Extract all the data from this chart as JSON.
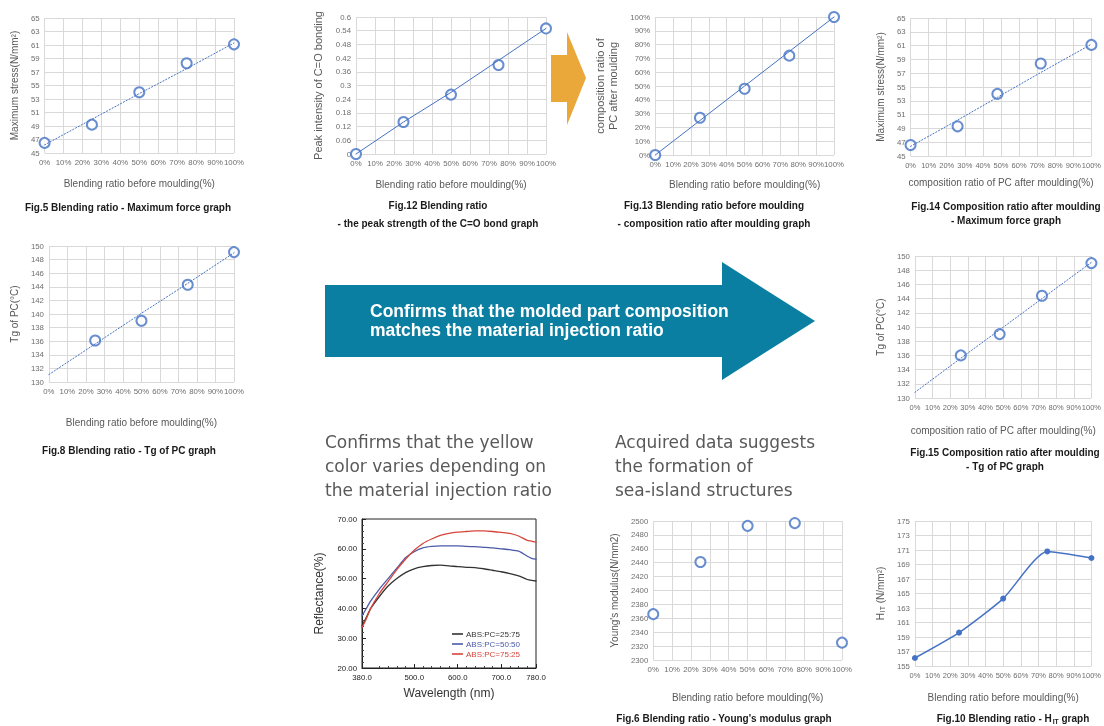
{
  "chart_data": [
    {
      "type": "scatter",
      "title": "Fig.5 Blending ratio - Maximum force graph",
      "xlabel": "Blending ratio before moulding(%)",
      "ylabel": "Maximum stress(N/mm²)",
      "x": [
        0,
        25,
        50,
        75,
        100
      ],
      "series": [
        {
          "color": "#4472c4",
          "values": [
            46.5,
            49.2,
            54.0,
            58.3,
            61.1
          ]
        },
        {
          "type": "line",
          "color": "#4472c4",
          "values": [
            46.2,
            50.0,
            53.8,
            57.5,
            61.3
          ],
          "marker": "none",
          "line_style": "dotted"
        }
      ],
      "xlim": [
        0,
        100
      ],
      "xticks": [
        {
          "value": 0,
          "label": "0%"
        },
        {
          "value": 10,
          "label": "10%"
        },
        {
          "value": 20,
          "label": "20%"
        },
        {
          "value": 30,
          "label": "30%"
        },
        {
          "value": 40,
          "label": "40%"
        },
        {
          "value": 50,
          "label": "50%"
        },
        {
          "value": 60,
          "label": "60%"
        },
        {
          "value": 70,
          "label": "70%"
        },
        {
          "value": 80,
          "label": "80%"
        },
        {
          "value": 90,
          "label": "90%"
        },
        {
          "value": 100,
          "label": "100%"
        }
      ],
      "ylim": [
        45,
        65
      ],
      "yticks": [
        45,
        47,
        49,
        51,
        53,
        55,
        57,
        59,
        61,
        63,
        65
      ],
      "grid": true,
      "marker": "circle"
    },
    {
      "type": "scatter",
      "title": "Fig.12 Blending ratio\n- the peak strength of the C=O bond graph",
      "xlabel": "Blending ratio before moulding(%)",
      "ylabel": "Peak intensity of C=O bonding",
      "x": [
        0,
        25,
        50,
        75,
        100
      ],
      "series": [
        {
          "color": "#4472c4",
          "values": [
            0,
            0.14,
            0.26,
            0.39,
            0.55
          ]
        },
        {
          "type": "line",
          "color": "#4472c4",
          "values": [
            0,
            0.14,
            0.27,
            0.41,
            0.55
          ],
          "marker": "none"
        }
      ],
      "xlim": [
        0,
        100
      ],
      "xticks": [
        {
          "value": 0,
          "label": "0%"
        },
        {
          "value": 10,
          "label": "10%"
        },
        {
          "value": 20,
          "label": "20%"
        },
        {
          "value": 30,
          "label": "30%"
        },
        {
          "value": 40,
          "label": "40%"
        },
        {
          "value": 50,
          "label": "50%"
        },
        {
          "value": 60,
          "label": "60%"
        },
        {
          "value": 70,
          "label": "70%"
        },
        {
          "value": 80,
          "label": "80%"
        },
        {
          "value": 90,
          "label": "90%"
        },
        {
          "value": 100,
          "label": "100%"
        }
      ],
      "ylim": [
        0,
        0.6
      ],
      "yticks": [
        0,
        0.06,
        0.12,
        0.18,
        0.24,
        0.3,
        0.36,
        0.42,
        0.48,
        0.54,
        0.6
      ],
      "grid": true,
      "marker": "circle"
    },
    {
      "type": "scatter",
      "title": "Fig.13 Blending ratio before moulding\n- composition ratio after moulding graph",
      "xlabel": "Blending ratio before moulding(%)",
      "ylabel": "composition ratio of\nPC after moulding",
      "x": [
        0,
        25,
        50,
        75,
        100
      ],
      "series": [
        {
          "color": "#4472c4",
          "values": [
            0,
            27,
            48,
            72,
            100
          ]
        },
        {
          "type": "line",
          "color": "#4472c4",
          "values": [
            0,
            25,
            50,
            75,
            100
          ],
          "marker": "none"
        }
      ],
      "xlim": [
        0,
        100
      ],
      "xticks": [
        {
          "value": 0,
          "label": "0%"
        },
        {
          "value": 10,
          "label": "10%"
        },
        {
          "value": 20,
          "label": "20%"
        },
        {
          "value": 30,
          "label": "30%"
        },
        {
          "value": 40,
          "label": "40%"
        },
        {
          "value": 50,
          "label": "50%"
        },
        {
          "value": 60,
          "label": "60%"
        },
        {
          "value": 70,
          "label": "70%"
        },
        {
          "value": 80,
          "label": "80%"
        },
        {
          "value": 90,
          "label": "90%"
        },
        {
          "value": 100,
          "label": "100%"
        }
      ],
      "ylim": [
        0,
        100
      ],
      "yticks": [
        {
          "value": 0,
          "label": "0%"
        },
        {
          "value": 10,
          "label": "10%"
        },
        {
          "value": 20,
          "label": "20%"
        },
        {
          "value": 30,
          "label": "30%"
        },
        {
          "value": 40,
          "label": "40%"
        },
        {
          "value": 50,
          "label": "50%"
        },
        {
          "value": 60,
          "label": "60%"
        },
        {
          "value": 70,
          "label": "70%"
        },
        {
          "value": 80,
          "label": "80%"
        },
        {
          "value": 90,
          "label": "90%"
        },
        {
          "value": 100,
          "label": "100%"
        }
      ],
      "grid": true,
      "marker": "circle"
    },
    {
      "type": "scatter",
      "title": "Fig.14 Composition ratio after moulding\n- Maximum force graph",
      "xlabel": "composition ratio of PC after moulding(%)",
      "ylabel": "Maximum stress(N/mm²)",
      "x": [
        0,
        26,
        48,
        72,
        100
      ],
      "series": [
        {
          "color": "#4472c4",
          "values": [
            46.6,
            49.3,
            54.0,
            58.4,
            61.1
          ]
        },
        {
          "type": "line",
          "color": "#4472c4",
          "values": [
            46.4,
            50.2,
            53.5,
            57.1,
            61.2
          ],
          "marker": "none",
          "line_style": "dotted"
        }
      ],
      "xlim": [
        0,
        100
      ],
      "xticks": [
        {
          "value": 0,
          "label": "0%"
        },
        {
          "value": 10,
          "label": "10%"
        },
        {
          "value": 20,
          "label": "20%"
        },
        {
          "value": 30,
          "label": "30%"
        },
        {
          "value": 40,
          "label": "40%"
        },
        {
          "value": 50,
          "label": "50%"
        },
        {
          "value": 60,
          "label": "60%"
        },
        {
          "value": 70,
          "label": "70%"
        },
        {
          "value": 80,
          "label": "80%"
        },
        {
          "value": 90,
          "label": "90%"
        },
        {
          "value": 100,
          "label": "100%"
        }
      ],
      "ylim": [
        45,
        65
      ],
      "yticks": [
        45,
        47,
        49,
        51,
        53,
        55,
        57,
        59,
        61,
        63,
        65
      ],
      "grid": true,
      "marker": "circle"
    },
    {
      "type": "scatter",
      "title": "Fig.8 Blending ratio - Tg of PC graph",
      "xlabel": "Blending ratio before moulding(%)",
      "ylabel": "Tg of PC(°C)",
      "x": [
        0,
        25,
        50,
        75,
        100
      ],
      "series": [
        {
          "color": "#4472c4",
          "values": [
            null,
            136.1,
            139.0,
            144.3,
            149.1
          ]
        },
        {
          "type": "line",
          "color": "#4472c4",
          "values": [
            131.1,
            135.6,
            140.1,
            144.5,
            149.0
          ],
          "marker": "none",
          "line_style": "dotted"
        }
      ],
      "xlim": [
        0,
        100
      ],
      "xticks": [
        {
          "value": 0,
          "label": "0%"
        },
        {
          "value": 10,
          "label": "10%"
        },
        {
          "value": 20,
          "label": "20%"
        },
        {
          "value": 30,
          "label": "30%"
        },
        {
          "value": 40,
          "label": "40%"
        },
        {
          "value": 50,
          "label": "50%"
        },
        {
          "value": 60,
          "label": "60%"
        },
        {
          "value": 70,
          "label": "70%"
        },
        {
          "value": 80,
          "label": "80%"
        },
        {
          "value": 90,
          "label": "90%"
        },
        {
          "value": 100,
          "label": "100%"
        }
      ],
      "ylim": [
        130,
        150
      ],
      "yticks": [
        130,
        132,
        134,
        136,
        138,
        140,
        142,
        144,
        146,
        148,
        150
      ],
      "grid": true,
      "marker": "circle"
    },
    {
      "type": "other",
      "annotations": [
        "Confirms that the molded part composition matches the material injection ratio"
      ]
    },
    {
      "type": "scatter",
      "title": "Fig.15 Composition ratio after moulding\n- Tg of PC graph",
      "xlabel": "composition ratio of PC after moulding(%)",
      "ylabel": "Tg of PC(°C)",
      "x": [
        0,
        26,
        48,
        72,
        100
      ],
      "series": [
        {
          "color": "#4472c4",
          "values": [
            null,
            136.0,
            139.0,
            144.4,
            149.0
          ]
        },
        {
          "type": "line",
          "color": "#4472c4",
          "values": [
            130.8,
            135.6,
            139.6,
            144.0,
            149.1
          ],
          "marker": "none",
          "line_style": "dotted"
        }
      ],
      "xlim": [
        0,
        100
      ],
      "xticks": [
        {
          "value": 0,
          "label": "0%"
        },
        {
          "value": 10,
          "label": "10%"
        },
        {
          "value": 20,
          "label": "20%"
        },
        {
          "value": 30,
          "label": "30%"
        },
        {
          "value": 40,
          "label": "40%"
        },
        {
          "value": 50,
          "label": "50%"
        },
        {
          "value": 60,
          "label": "60%"
        },
        {
          "value": 70,
          "label": "70%"
        },
        {
          "value": 80,
          "label": "80%"
        },
        {
          "value": 90,
          "label": "90%"
        },
        {
          "value": 100,
          "label": "100%"
        }
      ],
      "ylim": [
        130,
        150
      ],
      "yticks": [
        130,
        132,
        134,
        136,
        138,
        140,
        142,
        144,
        146,
        148,
        150
      ],
      "grid": true,
      "marker": "circle"
    },
    {
      "type": "line",
      "title": "Confirms that the yellow color varies depending on the material injection ratio",
      "xlabel": "Wavelength (nm)",
      "ylabel": "Reflectance(%)",
      "x": [
        380,
        390,
        400,
        420,
        440,
        460,
        480,
        500,
        520,
        540,
        560,
        580,
        600,
        620,
        640,
        660,
        680,
        700,
        720,
        740,
        760,
        770,
        780
      ],
      "series": [
        {
          "name": "ABS:PC=25:75",
          "color": "#333333",
          "values": [
            34.2,
            37.0,
            40.0,
            44.0,
            47.5,
            50.0,
            52.0,
            53.3,
            54.0,
            54.4,
            54.5,
            54.3,
            54.0,
            53.8,
            53.7,
            53.3,
            52.8,
            52.3,
            51.7,
            50.9,
            49.7,
            49.4,
            49.2
          ]
        },
        {
          "name": "ABS:PC=50:50",
          "color": "#4b5aa8",
          "values": [
            37.5,
            40.0,
            42.5,
            46.5,
            50.0,
            53.5,
            57.0,
            59.0,
            60.3,
            60.8,
            61.0,
            61.0,
            61.0,
            60.8,
            60.7,
            60.5,
            60.3,
            60.0,
            59.7,
            59.2,
            57.5,
            56.8,
            56.5
          ]
        },
        {
          "name": "ABS:PC=75:25",
          "color": "#d6453a",
          "values": [
            33.5,
            36.5,
            40.0,
            45.0,
            49.0,
            53.0,
            56.5,
            59.5,
            61.8,
            63.3,
            64.5,
            65.2,
            65.6,
            65.8,
            66.0,
            66.0,
            65.8,
            65.5,
            65.2,
            64.3,
            62.8,
            62.6,
            62.2
          ]
        }
      ],
      "xlim": [
        380,
        780
      ],
      "xticks": [
        {
          "value": 380,
          "label": "380.0"
        },
        {
          "value": 500,
          "label": "500.0"
        },
        {
          "value": 600,
          "label": "600.0"
        },
        {
          "value": 700,
          "label": "700.0"
        },
        {
          "value": 780,
          "label": "780.0"
        }
      ],
      "ylim": [
        20,
        70
      ],
      "yticks": [
        {
          "value": 20,
          "label": "20.00"
        },
        {
          "value": 30,
          "label": "30.00"
        },
        {
          "value": 40,
          "label": "40.00"
        },
        {
          "value": 50,
          "label": "50.00"
        },
        {
          "value": 60,
          "label": "60.00"
        },
        {
          "value": 70,
          "label": "70.00"
        }
      ],
      "legend": "bottom right"
    },
    {
      "type": "scatter",
      "title": "Fig.6 Blending ratio - Young's modulus graph",
      "annotations": [
        "Acquired data suggests the formation of sea-island structures"
      ],
      "xlabel": "Blending ratio before moulding(%)",
      "ylabel": "Young's modulus(N/mm2)",
      "x": [
        0,
        25,
        50,
        75,
        100
      ],
      "series": [
        {
          "color": "#4472c4",
          "values": [
            2366,
            2441,
            2493,
            2497,
            2325
          ]
        }
      ],
      "xlim": [
        0,
        100
      ],
      "xticks": [
        {
          "value": 0,
          "label": "0%"
        },
        {
          "value": 10,
          "label": "10%"
        },
        {
          "value": 20,
          "label": "20%"
        },
        {
          "value": 30,
          "label": "30%"
        },
        {
          "value": 40,
          "label": "40%"
        },
        {
          "value": 50,
          "label": "50%"
        },
        {
          "value": 60,
          "label": "60%"
        },
        {
          "value": 70,
          "label": "70%"
        },
        {
          "value": 80,
          "label": "80%"
        },
        {
          "value": 90,
          "label": "90%"
        },
        {
          "value": 100,
          "label": "100%"
        }
      ],
      "ylim": [
        2300,
        2500
      ],
      "yticks": [
        2300,
        2320,
        2340,
        2360,
        2380,
        2400,
        2420,
        2440,
        2460,
        2480,
        2500
      ],
      "grid": true,
      "marker": "circle"
    },
    {
      "type": "line",
      "title": "Fig.10 Blending ratio - H$_{IT}$ graph",
      "xlabel": "Blending ratio before moulding(%)",
      "ylabel": "H$_{IT}$ (N/mm²)",
      "x": [
        0,
        25,
        50,
        75,
        100
      ],
      "series": [
        {
          "color": "#4472c4",
          "values": [
            156.1,
            159.6,
            164.3,
            170.8,
            169.9
          ]
        }
      ],
      "xlim": [
        0,
        100
      ],
      "xticks": [
        {
          "value": 0,
          "label": "0%"
        },
        {
          "value": 10,
          "label": "10%"
        },
        {
          "value": 20,
          "label": "20%"
        },
        {
          "value": 30,
          "label": "30%"
        },
        {
          "value": 40,
          "label": "40%"
        },
        {
          "value": 50,
          "label": "50%"
        },
        {
          "value": 60,
          "label": "60%"
        },
        {
          "value": 70,
          "label": "70%"
        },
        {
          "value": 80,
          "label": "80%"
        },
        {
          "value": 90,
          "label": "90%"
        },
        {
          "value": 100,
          "label": "100%"
        }
      ],
      "ylim": [
        155,
        175
      ],
      "yticks": [
        155,
        157,
        159,
        161,
        163,
        165,
        167,
        169,
        171,
        173,
        175
      ],
      "grid": true,
      "marker": "circle"
    }
  ]
}
